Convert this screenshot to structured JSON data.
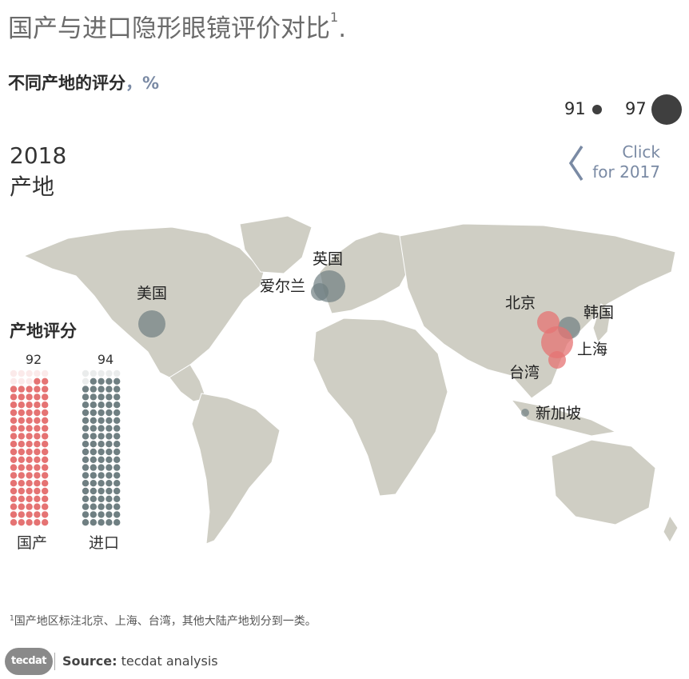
{
  "header": {
    "title": "国产与进口隐形眼镜评价对比",
    "title_sup": "1",
    "title_end": ".",
    "subtitle": "不同产地的评分",
    "subtitle_unit": "，%"
  },
  "size_legend": {
    "min_label": "91",
    "max_label": "97"
  },
  "panel": {
    "year": "2018",
    "label": "产地"
  },
  "toggle": {
    "line1": "Click",
    "line2": "for 2017"
  },
  "colors": {
    "domestic": "#e57373",
    "imported": "#6f7f82",
    "land": "#cfcec4",
    "accent": "#7a8aa4"
  },
  "chart_data": {
    "type": "bubble-map",
    "legend": [
      "91",
      "97"
    ],
    "points": [
      {
        "name": "美国",
        "group": "imported",
        "value": 95
      },
      {
        "name": "英国",
        "group": "imported",
        "value": 96
      },
      {
        "name": "爱尔兰",
        "group": "imported",
        "value": 93
      },
      {
        "name": "韩国",
        "group": "imported",
        "value": 94
      },
      {
        "name": "新加坡",
        "group": "imported",
        "value": 91
      },
      {
        "name": "北京",
        "group": "domestic",
        "value": 94
      },
      {
        "name": "上海",
        "group": "domestic",
        "value": 96
      },
      {
        "name": "台湾",
        "group": "domestic",
        "value": 93
      }
    ]
  },
  "score_panel": {
    "title": "产地评分",
    "groups": [
      {
        "name": "国产",
        "value": 92
      },
      {
        "name": "进口",
        "value": 94
      }
    ]
  },
  "footnote": {
    "sup": "1",
    "text": "国产地区标注北京、上海、台湾，其他大陆产地划分到一类。"
  },
  "footer": {
    "logo": "tecdat",
    "source_label": "Source:",
    "source_text": " tecdat analysis"
  }
}
